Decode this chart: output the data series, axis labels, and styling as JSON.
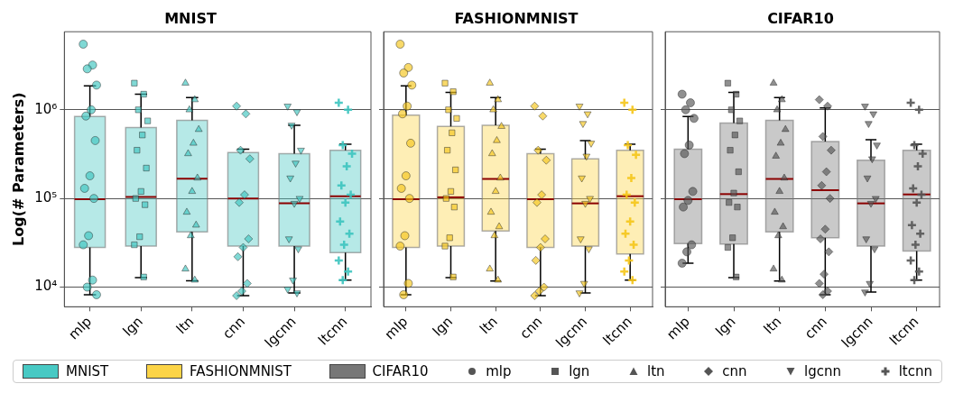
{
  "chart_data": [
    {
      "type": "box",
      "title": "MNIST",
      "ylabel": "Log(# Parameters)",
      "categories": [
        "mlp",
        "lgn",
        "ltn",
        "cnn",
        "lgcnn",
        "ltcnn"
      ],
      "log": "y",
      "grid": "y",
      "legend": "bottom",
      "ylim": [
        6000,
        7600000
      ],
      "yticks": [
        {
          "value": 10000,
          "label": "10⁴"
        },
        {
          "value": 100000,
          "label": "10⁵"
        },
        {
          "value": 1000000,
          "label": "10⁶"
        }
      ],
      "series": [
        {
          "type": "box",
          "name": "MNIST",
          "color": "#48c9c4",
          "boxes": [
            {
              "low": 8200,
              "q1": 28000,
              "median": 98000,
              "q3": 840000,
              "high": 1860000
            },
            {
              "low": 12800,
              "q1": 29000,
              "median": 104000,
              "q3": 630000,
              "high": 1500000
            },
            {
              "low": 11800,
              "q1": 42000,
              "median": 167000,
              "q3": 760000,
              "high": 1370000
            },
            {
              "low": 8000,
              "q1": 29000,
              "median": 100000,
              "q3": 330000,
              "high": 360000
            },
            {
              "low": 8600,
              "q1": 29000,
              "median": 88000,
              "q3": 320000,
              "high": 670000
            },
            {
              "low": 12000,
              "q1": 24500,
              "median": 106000,
              "q3": 350000,
              "high": 410000
            }
          ]
        },
        {
          "type": "scatter",
          "marker": "circle",
          "color": "#3cc4bf",
          "x": [
            "mlp",
            "mlp",
            "mlp",
            "mlp",
            "mlp",
            "mlp",
            "mlp",
            "mlp",
            "mlp",
            "mlp",
            "mlp",
            "mlp",
            "mlp",
            "mlp",
            "mlp"
          ],
          "values": [
            5500000,
            3200000,
            2900000,
            1900000,
            1000000,
            850000,
            450000,
            180000,
            130000,
            100000,
            38000,
            30000,
            12000,
            10000,
            8200
          ]
        },
        {
          "type": "scatter",
          "marker": "square",
          "color": "#3cc4bf",
          "x": [
            "lgn",
            "lgn",
            "lgn",
            "lgn",
            "lgn",
            "lgn",
            "lgn",
            "lgn",
            "lgn",
            "lgn",
            "lgn",
            "lgn",
            "lgn"
          ],
          "values": [
            2000000,
            1500000,
            1000000,
            750000,
            520000,
            350000,
            220000,
            120000,
            100000,
            85000,
            37000,
            30000,
            13000
          ]
        },
        {
          "type": "scatter",
          "marker": "triangle",
          "color": "#3cc4bf",
          "x": [
            "ltn",
            "ltn",
            "ltn",
            "ltn",
            "ltn",
            "ltn",
            "ltn",
            "ltn",
            "ltn",
            "ltn",
            "ltn",
            "ltn",
            "ltn"
          ],
          "values": [
            2000000,
            1300000,
            1000000,
            600000,
            420000,
            320000,
            170000,
            120000,
            70000,
            50000,
            38000,
            16000,
            12000
          ]
        },
        {
          "type": "scatter",
          "marker": "diamond",
          "color": "#3cc4bf",
          "x": [
            "cnn",
            "cnn",
            "cnn",
            "cnn",
            "cnn",
            "cnn",
            "cnn",
            "cnn",
            "cnn",
            "cnn",
            "cnn",
            "cnn"
          ],
          "values": [
            1100000,
            900000,
            350000,
            280000,
            110000,
            90000,
            35000,
            28000,
            22000,
            11000,
            9000,
            8000
          ]
        },
        {
          "type": "scatter",
          "marker": "triangle-down",
          "color": "#3cc4bf",
          "x": [
            "lgcnn",
            "lgcnn",
            "lgcnn",
            "lgcnn",
            "lgcnn",
            "lgcnn",
            "lgcnn",
            "lgcnn",
            "lgcnn",
            "lgcnn",
            "lgcnn",
            "lgcnn",
            "lgcnn"
          ],
          "values": [
            1100000,
            950000,
            670000,
            350000,
            250000,
            170000,
            100000,
            88000,
            35000,
            27000,
            12000,
            9500,
            8600
          ]
        },
        {
          "type": "scatter",
          "marker": "cross",
          "color": "#3cc4bf",
          "x": [
            "ltcnn",
            "ltcnn",
            "ltcnn",
            "ltcnn",
            "ltcnn",
            "ltcnn",
            "ltcnn",
            "ltcnn",
            "ltcnn",
            "ltcnn",
            "ltcnn",
            "ltcnn",
            "ltcnn",
            "ltcnn"
          ],
          "values": [
            1200000,
            1000000,
            400000,
            320000,
            230000,
            140000,
            110000,
            90000,
            55000,
            40000,
            30000,
            20000,
            15000,
            12000
          ]
        }
      ]
    },
    {
      "type": "box",
      "title": "FASHIONMNIST",
      "categories": [
        "mlp",
        "lgn",
        "ltn",
        "cnn",
        "lgcnn",
        "ltcnn"
      ],
      "log": "y",
      "grid": "y",
      "legend": "bottom",
      "tick_labels": "x",
      "ylim": [
        6000,
        7600000
      ],
      "yticks": [
        {
          "value": 10000,
          "label": null
        },
        {
          "value": 100000,
          "label": null
        },
        {
          "value": 1000000,
          "label": null
        }
      ],
      "series": [
        {
          "type": "box",
          "name": "FASHIONMNIST",
          "color": "#fcd447",
          "boxes": [
            {
              "low": 8200,
              "q1": 28000,
              "median": 98000,
              "q3": 870000,
              "high": 1860000
            },
            {
              "low": 12800,
              "q1": 29000,
              "median": 103000,
              "q3": 650000,
              "high": 1570000
            },
            {
              "low": 11700,
              "q1": 43000,
              "median": 166000,
              "q3": 670000,
              "high": 1370000
            },
            {
              "low": 8000,
              "q1": 28000,
              "median": 98000,
              "q3": 320000,
              "high": 360000
            },
            {
              "low": 8600,
              "q1": 29000,
              "median": 88000,
              "q3": 280000,
              "high": 450000
            },
            {
              "low": 12000,
              "q1": 23700,
              "median": 106000,
              "q3": 350000,
              "high": 410000
            }
          ]
        },
        {
          "type": "scatter",
          "marker": "circle",
          "color": "#f5c518",
          "x": [
            "mlp",
            "mlp",
            "mlp",
            "mlp",
            "mlp",
            "mlp",
            "mlp",
            "mlp",
            "mlp",
            "mlp",
            "mlp",
            "mlp",
            "mlp",
            "mlp"
          ],
          "values": [
            5500000,
            3000000,
            2600000,
            1900000,
            1100000,
            900000,
            420000,
            180000,
            130000,
            100000,
            38000,
            29000,
            11000,
            8200
          ]
        },
        {
          "type": "scatter",
          "marker": "square",
          "color": "#f5c518",
          "x": [
            "lgn",
            "lgn",
            "lgn",
            "lgn",
            "lgn",
            "lgn",
            "lgn",
            "lgn",
            "lgn",
            "lgn",
            "lgn",
            "lgn",
            "lgn"
          ],
          "values": [
            2000000,
            1600000,
            1000000,
            800000,
            550000,
            350000,
            210000,
            120000,
            100000,
            80000,
            36000,
            29000,
            13000
          ]
        },
        {
          "type": "scatter",
          "marker": "triangle",
          "color": "#f5c518",
          "x": [
            "ltn",
            "ltn",
            "ltn",
            "ltn",
            "ltn",
            "ltn",
            "ltn",
            "ltn",
            "ltn",
            "ltn",
            "ltn",
            "ltn",
            "ltn"
          ],
          "values": [
            2000000,
            1300000,
            1000000,
            650000,
            450000,
            320000,
            170000,
            120000,
            70000,
            48000,
            38000,
            16000,
            12000
          ]
        },
        {
          "type": "scatter",
          "marker": "diamond",
          "color": "#f5c518",
          "x": [
            "cnn",
            "cnn",
            "cnn",
            "cnn",
            "cnn",
            "cnn",
            "cnn",
            "cnn",
            "cnn",
            "cnn",
            "cnn",
            "cnn"
          ],
          "values": [
            1100000,
            850000,
            350000,
            270000,
            110000,
            90000,
            35000,
            28000,
            20000,
            10000,
            9000,
            8000
          ]
        },
        {
          "type": "scatter",
          "marker": "triangle-down",
          "color": "#f5c518",
          "x": [
            "lgcnn",
            "lgcnn",
            "lgcnn",
            "lgcnn",
            "lgcnn",
            "lgcnn",
            "lgcnn",
            "lgcnn",
            "lgcnn",
            "lgcnn",
            "lgcnn",
            "lgcnn"
          ],
          "values": [
            1100000,
            900000,
            700000,
            420000,
            300000,
            170000,
            100000,
            88000,
            35000,
            27000,
            11000,
            8600
          ]
        },
        {
          "type": "scatter",
          "marker": "cross",
          "color": "#f5c518",
          "x": [
            "ltcnn",
            "ltcnn",
            "ltcnn",
            "ltcnn",
            "ltcnn",
            "ltcnn",
            "ltcnn",
            "ltcnn",
            "ltcnn",
            "ltcnn",
            "ltcnn",
            "ltcnn",
            "ltcnn"
          ],
          "values": [
            1200000,
            1000000,
            400000,
            310000,
            170000,
            110000,
            90000,
            55000,
            40000,
            30000,
            20000,
            15000,
            12000
          ]
        }
      ]
    },
    {
      "type": "box",
      "title": "CIFAR10",
      "categories": [
        "mlp",
        "lgn",
        "ltn",
        "cnn",
        "lgcnn",
        "ltcnn"
      ],
      "log": "y",
      "grid": "y",
      "legend": "bottom",
      "tick_labels": "x",
      "ylim": [
        6000,
        7600000
      ],
      "yticks": [
        {
          "value": 10000,
          "label": null
        },
        {
          "value": 100000,
          "label": null
        },
        {
          "value": 1000000,
          "label": null
        }
      ],
      "series": [
        {
          "type": "box",
          "name": "CIFAR10",
          "color": "#777777",
          "boxes": [
            {
              "low": 18600,
              "q1": 31000,
              "median": 98000,
              "q3": 360000,
              "high": 840000
            },
            {
              "low": 12800,
              "q1": 30500,
              "median": 112000,
              "q3": 710000,
              "high": 1570000
            },
            {
              "low": 11700,
              "q1": 42000,
              "median": 166000,
              "q3": 760000,
              "high": 1370000
            },
            {
              "low": 8200,
              "q1": 36000,
              "median": 124000,
              "q3": 440000,
              "high": 1050000
            },
            {
              "low": 8800,
              "q1": 29000,
              "median": 88000,
              "q3": 270000,
              "high": 460000
            },
            {
              "low": 12000,
              "q1": 25500,
              "median": 111000,
              "q3": 350000,
              "high": 410000
            }
          ]
        },
        {
          "type": "scatter",
          "name": "mlp",
          "marker": "circle",
          "color": "#555555",
          "x": [
            "mlp",
            "mlp",
            "mlp",
            "mlp",
            "mlp",
            "mlp",
            "mlp",
            "mlp",
            "mlp",
            "mlp",
            "mlp",
            "mlp"
          ],
          "values": [
            1500000,
            1200000,
            1000000,
            800000,
            400000,
            320000,
            120000,
            95000,
            80000,
            30000,
            25000,
            18600
          ]
        },
        {
          "type": "scatter",
          "name": "lgn",
          "marker": "square",
          "color": "#555555",
          "x": [
            "lgn",
            "lgn",
            "lgn",
            "lgn",
            "lgn",
            "lgn",
            "lgn",
            "lgn",
            "lgn",
            "lgn",
            "lgn",
            "lgn",
            "lgn"
          ],
          "values": [
            2000000,
            1500000,
            1000000,
            750000,
            520000,
            350000,
            200000,
            115000,
            90000,
            80000,
            36000,
            28000,
            13000
          ]
        },
        {
          "type": "scatter",
          "name": "ltn",
          "marker": "triangle",
          "color": "#555555",
          "x": [
            "ltn",
            "ltn",
            "ltn",
            "ltn",
            "ltn",
            "ltn",
            "ltn",
            "ltn",
            "ltn",
            "ltn",
            "ltn",
            "ltn",
            "ltn"
          ],
          "values": [
            2000000,
            1300000,
            1000000,
            600000,
            420000,
            300000,
            170000,
            120000,
            70000,
            48000,
            38000,
            16000,
            12000
          ]
        },
        {
          "type": "scatter",
          "name": "cnn",
          "marker": "diamond",
          "color": "#555555",
          "x": [
            "cnn",
            "cnn",
            "cnn",
            "cnn",
            "cnn",
            "cnn",
            "cnn",
            "cnn",
            "cnn",
            "cnn",
            "cnn",
            "cnn",
            "cnn",
            "cnn"
          ],
          "values": [
            1300000,
            1100000,
            500000,
            350000,
            200000,
            140000,
            100000,
            45000,
            35000,
            25000,
            14000,
            11000,
            9000,
            8200
          ]
        },
        {
          "type": "scatter",
          "name": "lgcnn",
          "marker": "triangle-down",
          "color": "#555555",
          "x": [
            "lgcnn",
            "lgcnn",
            "lgcnn",
            "lgcnn",
            "lgcnn",
            "lgcnn",
            "lgcnn",
            "lgcnn",
            "lgcnn",
            "lgcnn",
            "lgcnn",
            "lgcnn"
          ],
          "values": [
            1100000,
            900000,
            700000,
            400000,
            280000,
            170000,
            100000,
            88000,
            35000,
            27000,
            11000,
            8800
          ]
        },
        {
          "type": "scatter",
          "name": "ltcnn",
          "marker": "cross",
          "color": "#555555",
          "x": [
            "ltcnn",
            "ltcnn",
            "ltcnn",
            "ltcnn",
            "ltcnn",
            "ltcnn",
            "ltcnn",
            "ltcnn",
            "ltcnn",
            "ltcnn",
            "ltcnn",
            "ltcnn",
            "ltcnn",
            "ltcnn"
          ],
          "values": [
            1200000,
            1000000,
            400000,
            320000,
            230000,
            130000,
            110000,
            90000,
            50000,
            40000,
            30000,
            20000,
            15000,
            12000
          ]
        }
      ]
    }
  ]
}
